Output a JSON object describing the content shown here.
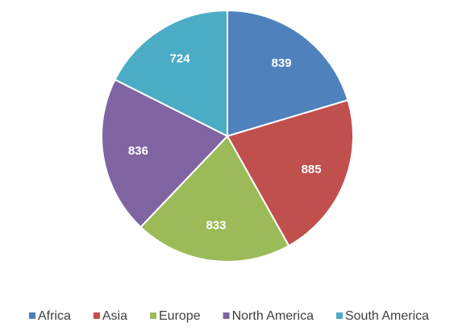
{
  "chart_data": {
    "type": "pie",
    "categories": [
      "Africa",
      "Asia",
      "Europe",
      "North America",
      "South America"
    ],
    "values": [
      839,
      885,
      833,
      836,
      724
    ],
    "colors": [
      "#4f81bd",
      "#c0504d",
      "#9bbb59",
      "#8064a2",
      "#4bacc6"
    ],
    "legend": "bottom"
  }
}
